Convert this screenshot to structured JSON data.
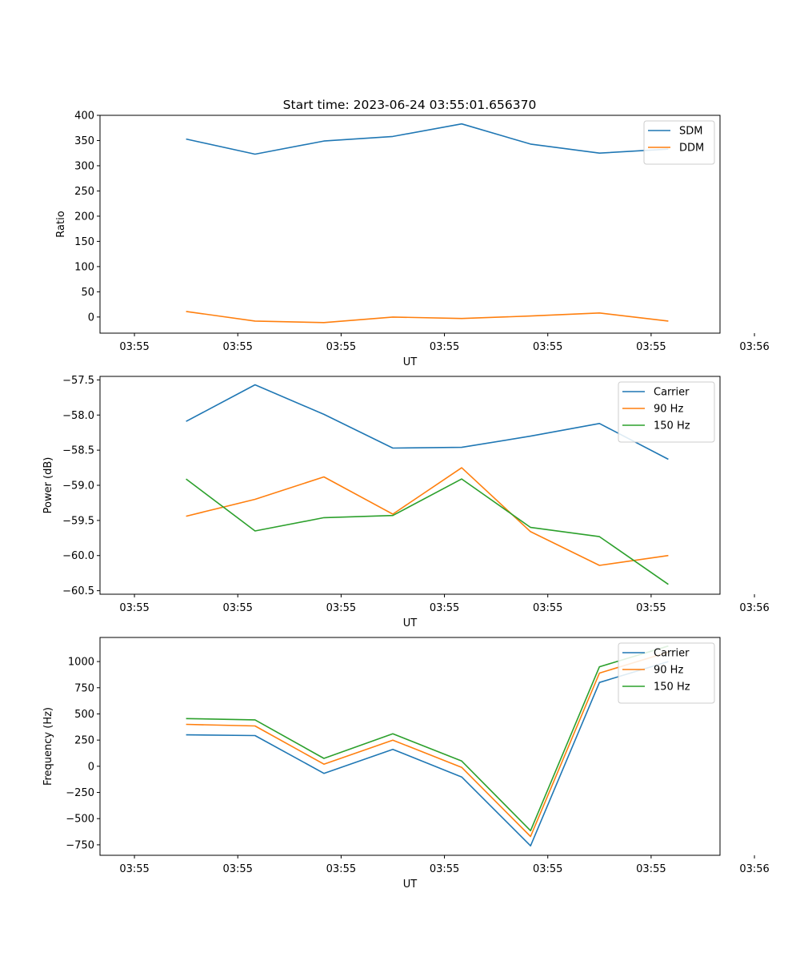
{
  "figure_title": "Start time: 2023-06-24 03:55:01.656370",
  "chart_data": [
    {
      "type": "line",
      "xlabel": "UT",
      "ylabel": "Ratio",
      "ylim": [
        -32,
        400
      ],
      "yticks": [
        0,
        50,
        100,
        150,
        200,
        250,
        300,
        350,
        400
      ],
      "xlim": [
        -0.5,
        8.5
      ],
      "xticks": [
        0,
        1.5,
        3,
        4.5,
        6,
        7.5,
        9
      ],
      "xtick_labels": [
        "03:55",
        "03:55",
        "03:55",
        "03:55",
        "03:55",
        "03:55",
        "03:56"
      ],
      "x": [
        0.75,
        1.75,
        2.75,
        3.75,
        4.75,
        5.75,
        6.75,
        7.75
      ],
      "legend_position": "top-right",
      "series": [
        {
          "name": "SDM",
          "color": "#1f77b4",
          "values": [
            353,
            323,
            349,
            358,
            383,
            343,
            325,
            333
          ]
        },
        {
          "name": "DDM",
          "color": "#ff7f0e",
          "values": [
            11,
            -8,
            -11,
            0,
            -3,
            2,
            8,
            -8
          ]
        }
      ]
    },
    {
      "type": "line",
      "xlabel": "UT",
      "ylabel": "Power (dB)",
      "ylim": [
        -60.55,
        -57.45
      ],
      "yticks": [
        -57.5,
        -58.0,
        -58.5,
        -59.0,
        -59.5,
        -60.0,
        -60.5
      ],
      "ytick_labels": [
        "−57.5",
        "−58.0",
        "−58.5",
        "−59.0",
        "−59.5",
        "−60.0",
        "−60.5"
      ],
      "xlim": [
        -0.5,
        8.5
      ],
      "xticks": [
        0,
        1.5,
        3,
        4.5,
        6,
        7.5,
        9
      ],
      "xtick_labels": [
        "03:55",
        "03:55",
        "03:55",
        "03:55",
        "03:55",
        "03:55",
        "03:56"
      ],
      "x": [
        0.75,
        1.75,
        2.75,
        3.75,
        4.75,
        5.75,
        6.75,
        7.75
      ],
      "legend_position": "top-right",
      "series": [
        {
          "name": "Carrier",
          "color": "#1f77b4",
          "values": [
            -58.09,
            -57.57,
            -57.99,
            -58.47,
            -58.46,
            -58.3,
            -58.12,
            -58.63
          ]
        },
        {
          "name": "90 Hz",
          "color": "#ff7f0e",
          "values": [
            -59.44,
            -59.2,
            -58.88,
            -59.41,
            -58.75,
            -59.66,
            -60.14,
            -60.0
          ]
        },
        {
          "name": "150 Hz",
          "color": "#2ca02c",
          "values": [
            -58.91,
            -59.65,
            -59.46,
            -59.43,
            -58.91,
            -59.6,
            -59.73,
            -60.41
          ]
        }
      ]
    },
    {
      "type": "line",
      "xlabel": "UT",
      "ylabel": "Frequency (Hz)",
      "ylim": [
        -850,
        1230
      ],
      "yticks": [
        -750,
        -500,
        -250,
        0,
        250,
        500,
        750,
        1000
      ],
      "ytick_labels": [
        "−750",
        "−500",
        "−250",
        "0",
        "250",
        "500",
        "750",
        "1000"
      ],
      "xlim": [
        -0.5,
        8.5
      ],
      "xticks": [
        0,
        1.5,
        3,
        4.5,
        6,
        7.5,
        9
      ],
      "xtick_labels": [
        "03:55",
        "03:55",
        "03:55",
        "03:55",
        "03:55",
        "03:55",
        "03:56"
      ],
      "x": [
        0.75,
        1.75,
        2.75,
        3.75,
        4.75,
        5.75,
        6.75,
        7.75
      ],
      "legend_position": "top-right",
      "series": [
        {
          "name": "Carrier",
          "color": "#1f77b4",
          "values": [
            300,
            293,
            -68,
            162,
            -102,
            -760,
            800,
            1000
          ]
        },
        {
          "name": "90 Hz",
          "color": "#ff7f0e",
          "values": [
            400,
            385,
            20,
            250,
            -10,
            -670,
            890,
            1090
          ]
        },
        {
          "name": "150 Hz",
          "color": "#2ca02c",
          "values": [
            455,
            443,
            75,
            310,
            50,
            -615,
            950,
            1148
          ]
        }
      ]
    }
  ]
}
